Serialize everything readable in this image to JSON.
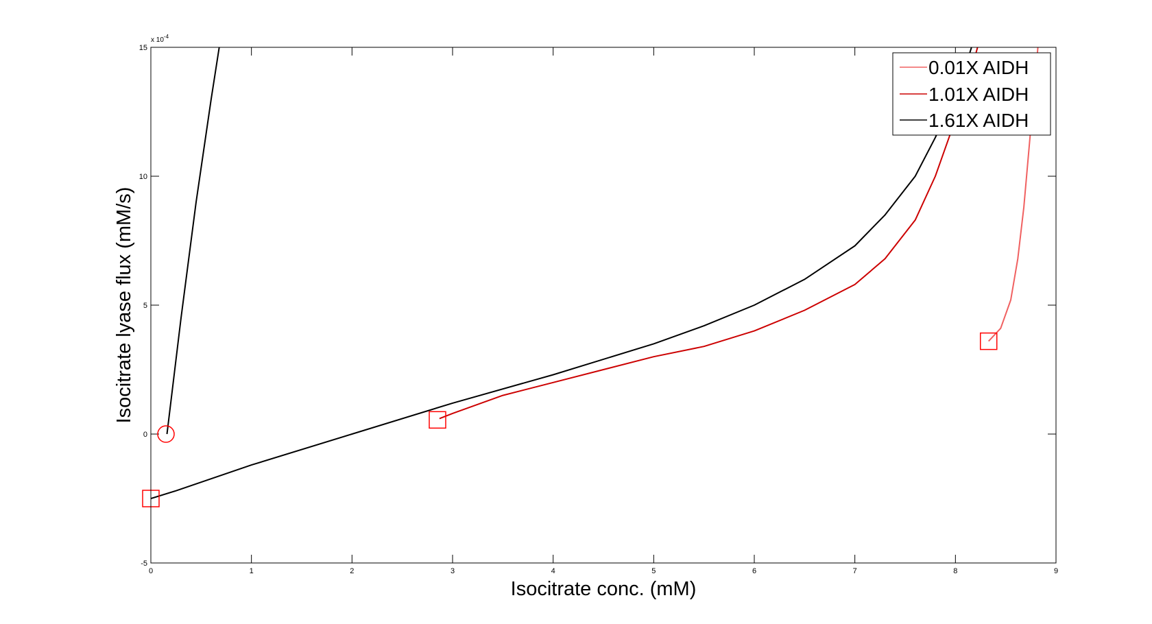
{
  "chart_data": {
    "type": "line",
    "title": "",
    "xlabel": "Isocitrate conc. (mM)",
    "ylabel": "Isocitrate lyase flux (mM/s)",
    "xlim": [
      0,
      9
    ],
    "ylim": [
      -5,
      15
    ],
    "y_multiplier": "x 10",
    "y_multiplier_exp": "-4",
    "xticks": [
      0,
      1,
      2,
      3,
      4,
      5,
      6,
      7,
      8,
      9
    ],
    "yticks": [
      -5,
      0,
      5,
      10,
      15
    ],
    "grid": false,
    "legend_position": "top-right",
    "series": [
      {
        "name": "0.01X AIDH",
        "color": "#f06060",
        "points": [
          [
            8.33,
            3.6
          ],
          [
            8.45,
            4.1
          ],
          [
            8.55,
            5.2
          ],
          [
            8.62,
            6.8
          ],
          [
            8.68,
            8.8
          ],
          [
            8.73,
            11.0
          ],
          [
            8.78,
            13.2
          ],
          [
            8.82,
            15.0
          ]
        ]
      },
      {
        "name": "1.01X AIDH",
        "color": "#cc0000",
        "points": [
          [
            2.87,
            0.6
          ],
          [
            3.0,
            0.8
          ],
          [
            3.5,
            1.5
          ],
          [
            4.0,
            2.0
          ],
          [
            4.5,
            2.5
          ],
          [
            5.0,
            3.0
          ],
          [
            5.5,
            3.4
          ],
          [
            6.0,
            4.0
          ],
          [
            6.5,
            4.8
          ],
          [
            7.0,
            5.8
          ],
          [
            7.3,
            6.8
          ],
          [
            7.6,
            8.3
          ],
          [
            7.8,
            10.0
          ],
          [
            8.0,
            12.2
          ],
          [
            8.15,
            14.0
          ],
          [
            8.22,
            15.0
          ]
        ]
      },
      {
        "name": "1.61X AIDH",
        "color": "#000000",
        "points": [
          [
            0.0,
            -2.5
          ],
          [
            0.25,
            -2.2
          ],
          [
            1.0,
            -1.2
          ],
          [
            2.0,
            0.0
          ],
          [
            3.0,
            1.2
          ],
          [
            4.0,
            2.3
          ],
          [
            5.0,
            3.5
          ],
          [
            5.5,
            4.2
          ],
          [
            6.0,
            5.0
          ],
          [
            6.5,
            6.0
          ],
          [
            7.0,
            7.3
          ],
          [
            7.3,
            8.5
          ],
          [
            7.6,
            10.0
          ],
          [
            7.8,
            11.5
          ],
          [
            8.0,
            13.2
          ],
          [
            8.12,
            14.5
          ],
          [
            8.16,
            15.0
          ]
        ]
      },
      {
        "name": "",
        "color": "#000000",
        "points": [
          [
            0.16,
            0.0
          ],
          [
            0.3,
            4.5
          ],
          [
            0.45,
            9.0
          ],
          [
            0.6,
            13.0
          ],
          [
            0.68,
            15.0
          ]
        ]
      }
    ],
    "markers": [
      {
        "shape": "circle",
        "x": 0.15,
        "y": 0.0,
        "color": "#ff0000"
      },
      {
        "shape": "square",
        "x": 0.0,
        "y": -2.5,
        "color": "#ff0000"
      },
      {
        "shape": "square",
        "x": 2.85,
        "y": 0.55,
        "color": "#ff0000"
      },
      {
        "shape": "square",
        "x": 8.33,
        "y": 3.6,
        "color": "#ff0000"
      }
    ]
  }
}
